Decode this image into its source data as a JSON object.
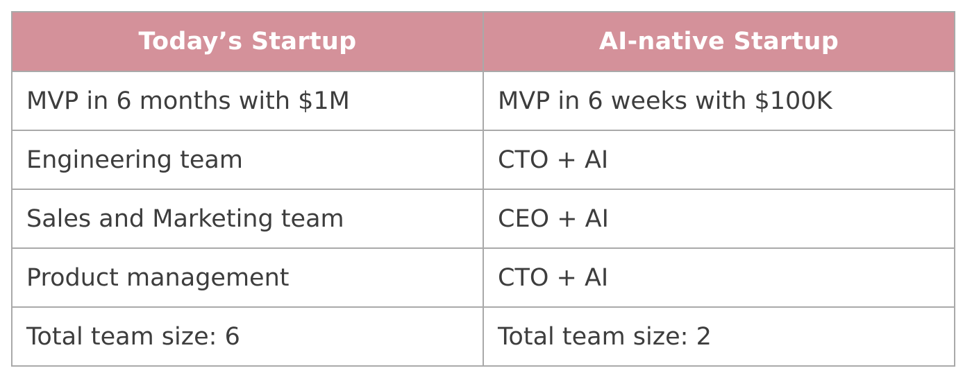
{
  "table": {
    "headers": [
      "Today’s Startup",
      "AI-native Startup"
    ],
    "rows": [
      [
        "MVP in 6 months with $1M",
        "MVP in 6 weeks with $100K"
      ],
      [
        "Engineering team",
        "CTO + AI"
      ],
      [
        "Sales and Marketing team",
        "CEO + AI"
      ],
      [
        "Product management",
        "CTO + AI"
      ],
      [
        "Total team size: 6",
        "Total team size: 2"
      ]
    ]
  },
  "colors": {
    "header_background": "#d4919a",
    "header_text": "#ffffff",
    "cell_text": "#3d3d3d",
    "border": "#a9a9a9"
  }
}
